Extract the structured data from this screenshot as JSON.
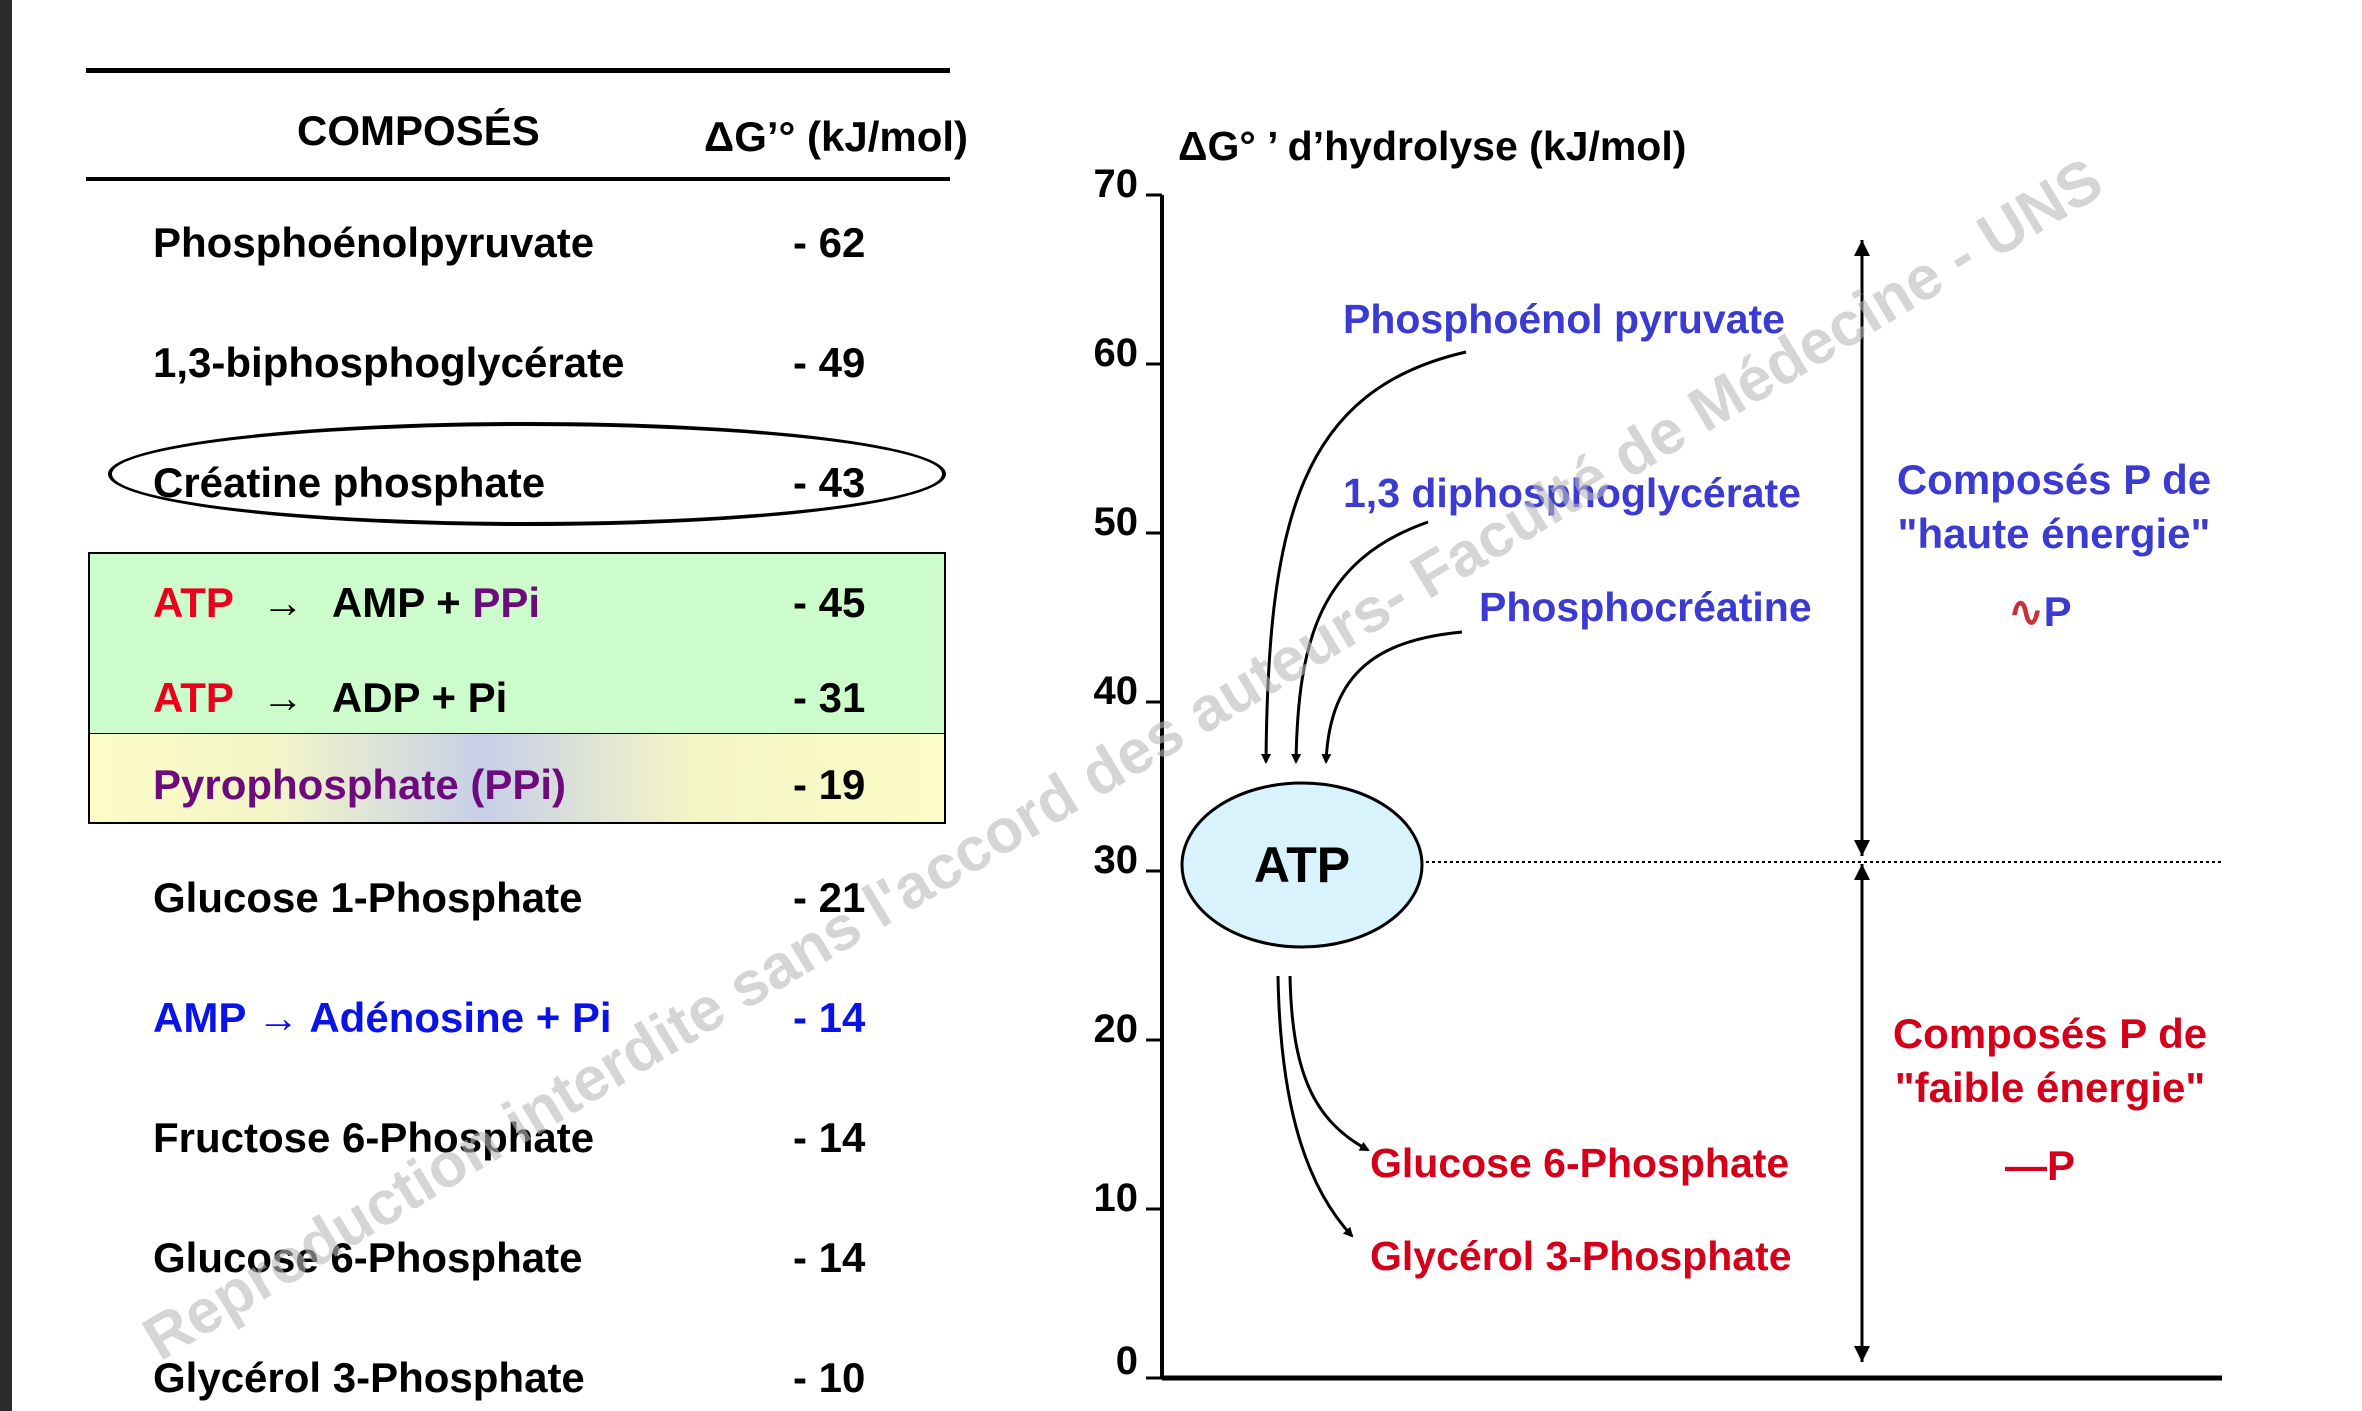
{
  "table": {
    "header": {
      "compounds": "COMPOSÉS",
      "dg": "ΔG’° (kJ/mol)"
    },
    "rows": [
      {
        "name": "Phosphoénolpyruvate",
        "value": "- 62"
      },
      {
        "name": "1,3-biphosphoglycérate",
        "value": "- 49"
      },
      {
        "name": "Créatine phosphate",
        "value": "- 43"
      },
      {
        "atp": "ATP",
        "arrow": "→",
        "products_a": "AMP + ",
        "products_b": "PPi",
        "value": "- 45"
      },
      {
        "atp": "ATP",
        "arrow": "→",
        "products_a": "ADP + Pi",
        "value": "- 31"
      },
      {
        "name": "Pyrophosphate (PPi)",
        "value": "- 19"
      },
      {
        "name": "Glucose 1-Phosphate",
        "value": "- 21"
      },
      {
        "name": "AMP → Adénosine + Pi",
        "value": "- 14"
      },
      {
        "name": "Fructose 6-Phosphate",
        "value": "- 14"
      },
      {
        "name": "Glucose 6-Phosphate",
        "value": "- 14"
      },
      {
        "name": "Glycérol 3-Phosphate",
        "value": "- 10"
      }
    ]
  },
  "diagram": {
    "axis_title": "ΔG° ’ d’hydrolyse (kJ/mol)",
    "y_ticks": [
      "70",
      "60",
      "50",
      "40",
      "30",
      "20",
      "10",
      "0"
    ],
    "y_range": [
      0,
      70
    ],
    "atp_label": "ATP",
    "atp_level": 30,
    "high_compounds": [
      "Phosphoénol pyruvate",
      "1,3 diphosphoglycérate",
      "Phosphocréatine"
    ],
    "low_compounds": [
      "Glucose 6-Phosphate",
      "Glycérol 3-Phosphate"
    ],
    "high_group": {
      "line1": "Composés P de",
      "line2": "\"haute énergie\"",
      "symbol_tilde": "∿",
      "symbol_p": "P"
    },
    "low_group": {
      "line1": "Composés P de",
      "line2": "\"faible énergie\"",
      "symbol_dash": "—",
      "symbol_p": "P"
    }
  },
  "watermark": "Reproduction interdite sans l'accord des auteurs- Faculté de Médecine - UNS",
  "colors": {
    "high_energy_blue": "#3b3bd1",
    "low_energy_red": "#d4001a",
    "atp_red": "#e8001c",
    "ppi_purple": "#6d0a7c",
    "amp_blue": "#0a13e6",
    "atp_ellipse_fill": "#d8f3fb",
    "green_box": "#ccfccc"
  }
}
